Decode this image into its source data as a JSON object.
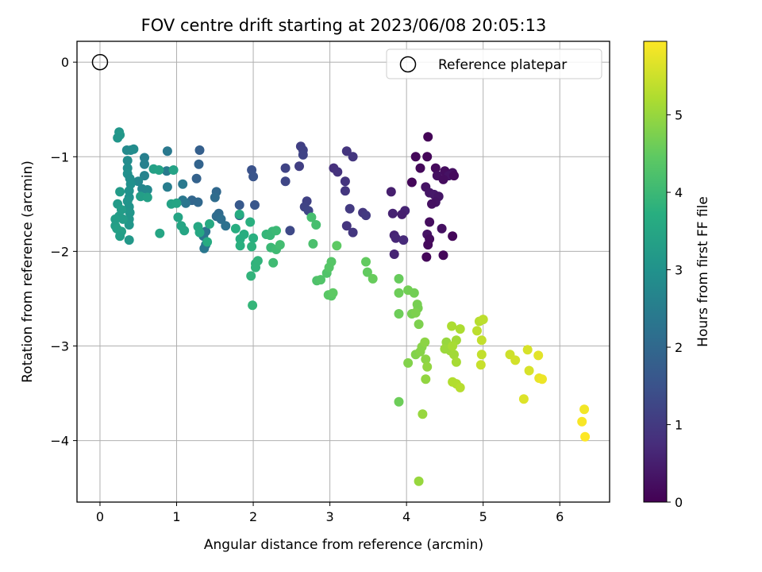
{
  "chart_data": {
    "type": "scatter",
    "title": "FOV centre drift starting at 2023/06/08 20:05:13",
    "xlabel": "Angular distance from reference (arcmin)",
    "ylabel": "Rotation from reference (arcmin)",
    "xlim": [
      -0.3,
      6.65
    ],
    "ylim": [
      -4.65,
      0.22
    ],
    "xticks": [
      0,
      1,
      2,
      3,
      4,
      5,
      6
    ],
    "yticks": [
      0,
      -1,
      -2,
      -3,
      -4
    ],
    "grid": true,
    "legend": {
      "placement": "top-right",
      "entries": [
        "Reference platepar"
      ]
    },
    "reference_point": {
      "x": 0,
      "y": 0,
      "label": "Reference platepar"
    },
    "colorbar": {
      "label": "Hours from first FF file",
      "colormap": "viridis",
      "range": [
        0,
        5.95
      ],
      "ticks": [
        0,
        1,
        2,
        3,
        4,
        5
      ]
    },
    "series": [
      {
        "color_by": "hours",
        "points": [
          [
            4.28,
            -0.79,
            0.05
          ],
          [
            4.12,
            -1.0,
            0.1
          ],
          [
            4.27,
            -1.0,
            0.1
          ],
          [
            4.38,
            -1.12,
            0.15
          ],
          [
            4.5,
            -1.15,
            0.2
          ],
          [
            4.6,
            -1.17,
            0.25
          ],
          [
            4.18,
            -1.12,
            0.12
          ],
          [
            4.55,
            -1.2,
            0.3
          ],
          [
            4.4,
            -1.2,
            0.25
          ],
          [
            4.48,
            -1.24,
            0.2
          ],
          [
            4.62,
            -1.2,
            0.15
          ],
          [
            4.07,
            -1.27,
            0.1
          ],
          [
            4.25,
            -1.32,
            0.3
          ],
          [
            4.3,
            -1.38,
            0.35
          ],
          [
            4.36,
            -1.4,
            0.4
          ],
          [
            4.42,
            -1.42,
            0.35
          ],
          [
            4.38,
            -1.48,
            0.3
          ],
          [
            4.33,
            -1.5,
            0.25
          ],
          [
            4.3,
            -1.69,
            0.2
          ],
          [
            4.46,
            -1.76,
            0.25
          ],
          [
            4.27,
            -1.82,
            0.3
          ],
          [
            4.6,
            -1.84,
            0.1
          ],
          [
            4.3,
            -1.87,
            0.2
          ],
          [
            4.28,
            -1.93,
            0.15
          ],
          [
            4.26,
            -2.06,
            0.1
          ],
          [
            4.48,
            -2.04,
            0.1
          ],
          [
            3.8,
            -1.37,
            0.5
          ],
          [
            3.82,
            -1.6,
            0.55
          ],
          [
            3.98,
            -1.57,
            0.6
          ],
          [
            3.94,
            -1.61,
            0.5
          ],
          [
            3.84,
            -1.83,
            0.6
          ],
          [
            3.86,
            -1.86,
            0.65
          ],
          [
            3.96,
            -1.88,
            0.7
          ],
          [
            3.84,
            -2.03,
            0.6
          ],
          [
            3.05,
            -1.12,
            0.8
          ],
          [
            3.1,
            -1.16,
            0.85
          ],
          [
            3.22,
            -0.94,
            0.9
          ],
          [
            3.3,
            -1.0,
            0.95
          ],
          [
            3.2,
            -1.26,
            0.9
          ],
          [
            3.2,
            -1.36,
            0.95
          ],
          [
            3.26,
            -1.55,
            1.0
          ],
          [
            3.43,
            -1.59,
            0.95
          ],
          [
            3.47,
            -1.62,
            1.0
          ],
          [
            3.22,
            -1.73,
            0.9
          ],
          [
            3.3,
            -1.8,
            0.95
          ],
          [
            2.62,
            -0.89,
            1.1
          ],
          [
            2.65,
            -0.93,
            1.15
          ],
          [
            2.6,
            -1.1,
            1.1
          ],
          [
            2.65,
            -0.98,
            1.2
          ],
          [
            2.7,
            -1.47,
            1.15
          ],
          [
            2.67,
            -1.53,
            1.2
          ],
          [
            2.72,
            -1.57,
            1.25
          ],
          [
            2.42,
            -1.12,
            1.2
          ],
          [
            2.42,
            -1.26,
            1.25
          ],
          [
            2.48,
            -1.78,
            1.3
          ],
          [
            1.98,
            -1.14,
            1.5
          ],
          [
            2.0,
            -1.21,
            1.55
          ],
          [
            2.02,
            -1.51,
            1.6
          ],
          [
            1.82,
            -1.51,
            1.65
          ],
          [
            1.82,
            -1.62,
            1.7
          ],
          [
            1.3,
            -0.93,
            1.8
          ],
          [
            1.29,
            -1.08,
            1.9
          ],
          [
            1.26,
            -1.23,
            1.85
          ],
          [
            1.2,
            -1.46,
            1.95
          ],
          [
            1.28,
            -1.48,
            2.0
          ],
          [
            1.52,
            -1.37,
            2.0
          ],
          [
            1.5,
            -1.43,
            2.1
          ],
          [
            1.55,
            -1.6,
            2.05
          ],
          [
            1.52,
            -1.63,
            2.1
          ],
          [
            1.58,
            -1.66,
            2.15
          ],
          [
            1.64,
            -1.73,
            2.2
          ],
          [
            1.38,
            -1.79,
            2.25
          ],
          [
            1.35,
            -1.84,
            2.3
          ],
          [
            1.38,
            -1.93,
            2.3
          ],
          [
            1.36,
            -1.97,
            2.35
          ],
          [
            1.12,
            -1.49,
            2.3
          ],
          [
            1.08,
            -1.46,
            2.35
          ],
          [
            1.08,
            -1.29,
            2.4
          ],
          [
            0.88,
            -0.94,
            2.4
          ],
          [
            0.87,
            -1.15,
            2.45
          ],
          [
            0.88,
            -1.32,
            2.5
          ],
          [
            0.58,
            -1.01,
            2.55
          ],
          [
            0.58,
            -1.08,
            2.6
          ],
          [
            0.58,
            -1.2,
            2.65
          ],
          [
            0.55,
            -1.34,
            2.7
          ],
          [
            0.62,
            -1.35,
            2.75
          ],
          [
            0.5,
            -1.26,
            2.75
          ],
          [
            0.35,
            -0.93,
            2.8
          ],
          [
            0.4,
            -0.93,
            2.8
          ],
          [
            0.44,
            -0.92,
            2.85
          ],
          [
            0.36,
            -1.04,
            2.85
          ],
          [
            0.36,
            -1.12,
            2.9
          ],
          [
            0.36,
            -1.18,
            2.95
          ],
          [
            0.39,
            -1.23,
            2.9
          ],
          [
            0.4,
            -1.29,
            2.95
          ],
          [
            0.38,
            -1.36,
            3.0
          ],
          [
            0.38,
            -1.43,
            3.0
          ],
          [
            0.36,
            -1.47,
            3.05
          ],
          [
            0.38,
            -1.53,
            3.05
          ],
          [
            0.39,
            -1.59,
            3.1
          ],
          [
            0.38,
            -1.66,
            3.1
          ],
          [
            0.38,
            -1.72,
            3.1
          ],
          [
            0.38,
            -1.88,
            3.15
          ],
          [
            0.25,
            -0.74,
            3.1
          ],
          [
            0.26,
            -0.77,
            3.15
          ],
          [
            0.23,
            -0.8,
            3.1
          ],
          [
            0.26,
            -1.37,
            3.2
          ],
          [
            0.23,
            -1.5,
            3.2
          ],
          [
            0.28,
            -1.56,
            3.25
          ],
          [
            0.25,
            -1.63,
            3.25
          ],
          [
            0.3,
            -1.66,
            3.25
          ],
          [
            0.2,
            -1.66,
            3.3
          ],
          [
            0.2,
            -1.73,
            3.3
          ],
          [
            0.22,
            -1.76,
            3.35
          ],
          [
            0.28,
            -1.79,
            3.35
          ],
          [
            0.26,
            -1.84,
            3.3
          ],
          [
            0.53,
            -1.42,
            3.3
          ],
          [
            0.62,
            -1.43,
            3.35
          ],
          [
            0.7,
            -1.13,
            3.35
          ],
          [
            0.77,
            -1.14,
            3.4
          ],
          [
            0.96,
            -1.14,
            3.4
          ],
          [
            0.93,
            -1.5,
            3.4
          ],
          [
            1.0,
            -1.49,
            3.45
          ],
          [
            1.02,
            -1.64,
            3.45
          ],
          [
            1.06,
            -1.73,
            3.5
          ],
          [
            1.1,
            -1.78,
            3.5
          ],
          [
            0.78,
            -1.81,
            3.5
          ],
          [
            1.28,
            -1.74,
            3.55
          ],
          [
            1.3,
            -1.8,
            3.55
          ],
          [
            1.43,
            -1.71,
            3.6
          ],
          [
            1.4,
            -1.9,
            3.65
          ],
          [
            1.82,
            -1.61,
            3.65
          ],
          [
            1.77,
            -1.76,
            3.7
          ],
          [
            1.88,
            -1.82,
            3.7
          ],
          [
            1.83,
            -1.87,
            3.7
          ],
          [
            1.83,
            -1.94,
            3.75
          ],
          [
            1.96,
            -1.69,
            3.75
          ],
          [
            2.0,
            -1.86,
            3.75
          ],
          [
            1.98,
            -1.95,
            3.8
          ],
          [
            2.03,
            -2.13,
            3.8
          ],
          [
            2.06,
            -2.1,
            3.85
          ],
          [
            2.03,
            -2.17,
            3.85
          ],
          [
            1.97,
            -2.26,
            3.85
          ],
          [
            1.99,
            -2.57,
            3.9
          ],
          [
            2.17,
            -1.82,
            3.9
          ],
          [
            2.22,
            -1.83,
            3.95
          ],
          [
            2.25,
            -1.79,
            3.95
          ],
          [
            2.3,
            -1.78,
            4.0
          ],
          [
            2.23,
            -1.96,
            4.0
          ],
          [
            2.26,
            -2.12,
            4.05
          ],
          [
            2.3,
            -1.98,
            4.05
          ],
          [
            2.35,
            -1.93,
            4.1
          ],
          [
            2.76,
            -1.64,
            4.15
          ],
          [
            2.82,
            -1.72,
            4.15
          ],
          [
            2.78,
            -1.92,
            4.2
          ],
          [
            2.83,
            -2.31,
            4.25
          ],
          [
            2.88,
            -2.3,
            4.3
          ],
          [
            2.96,
            -2.23,
            4.3
          ],
          [
            2.99,
            -2.17,
            4.35
          ],
          [
            3.02,
            -2.11,
            4.35
          ],
          [
            2.98,
            -2.46,
            4.4
          ],
          [
            3.02,
            -2.47,
            4.4
          ],
          [
            3.04,
            -2.44,
            4.45
          ],
          [
            3.09,
            -1.94,
            4.45
          ],
          [
            3.47,
            -2.11,
            4.5
          ],
          [
            3.49,
            -2.22,
            4.5
          ],
          [
            3.56,
            -2.29,
            4.55
          ],
          [
            3.9,
            -2.29,
            4.55
          ],
          [
            3.9,
            -2.44,
            4.6
          ],
          [
            3.9,
            -2.66,
            4.6
          ],
          [
            3.9,
            -3.59,
            4.6
          ],
          [
            4.02,
            -2.41,
            4.65
          ],
          [
            4.1,
            -2.44,
            4.65
          ],
          [
            4.14,
            -2.56,
            4.7
          ],
          [
            4.15,
            -2.6,
            4.7
          ],
          [
            4.07,
            -2.66,
            4.7
          ],
          [
            4.12,
            -2.65,
            4.75
          ],
          [
            4.16,
            -2.77,
            4.75
          ],
          [
            4.02,
            -3.18,
            4.8
          ],
          [
            4.12,
            -3.09,
            4.8
          ],
          [
            4.18,
            -3.06,
            4.85
          ],
          [
            4.2,
            -3.01,
            4.85
          ],
          [
            4.24,
            -2.96,
            4.9
          ],
          [
            4.25,
            -3.14,
            4.9
          ],
          [
            4.27,
            -3.22,
            4.95
          ],
          [
            4.25,
            -3.35,
            4.95
          ],
          [
            4.21,
            -3.72,
            5.0
          ],
          [
            4.16,
            -4.43,
            5.0
          ],
          [
            4.52,
            -2.96,
            5.0
          ],
          [
            4.5,
            -3.03,
            5.05
          ],
          [
            4.57,
            -3.05,
            5.05
          ],
          [
            4.62,
            -3.09,
            5.1
          ],
          [
            4.65,
            -2.94,
            5.1
          ],
          [
            4.6,
            -3.0,
            5.15
          ],
          [
            4.65,
            -3.17,
            5.15
          ],
          [
            4.59,
            -2.79,
            5.2
          ],
          [
            4.7,
            -2.82,
            5.2
          ],
          [
            4.6,
            -3.38,
            5.25
          ],
          [
            4.65,
            -3.4,
            5.25
          ],
          [
            4.7,
            -3.44,
            5.3
          ],
          [
            4.95,
            -2.74,
            5.3
          ],
          [
            5.0,
            -2.72,
            5.35
          ],
          [
            4.92,
            -2.84,
            5.35
          ],
          [
            4.98,
            -2.94,
            5.4
          ],
          [
            4.98,
            -3.09,
            5.4
          ],
          [
            4.97,
            -3.2,
            5.45
          ],
          [
            5.35,
            -3.09,
            5.5
          ],
          [
            5.42,
            -3.15,
            5.55
          ],
          [
            5.58,
            -3.04,
            5.6
          ],
          [
            5.6,
            -3.26,
            5.6
          ],
          [
            5.53,
            -3.56,
            5.65
          ],
          [
            5.72,
            -3.1,
            5.7
          ],
          [
            5.73,
            -3.34,
            5.75
          ],
          [
            5.77,
            -3.35,
            5.8
          ],
          [
            6.32,
            -3.67,
            5.85
          ],
          [
            6.29,
            -3.8,
            5.9
          ],
          [
            6.33,
            -3.96,
            5.95
          ]
        ]
      }
    ]
  }
}
